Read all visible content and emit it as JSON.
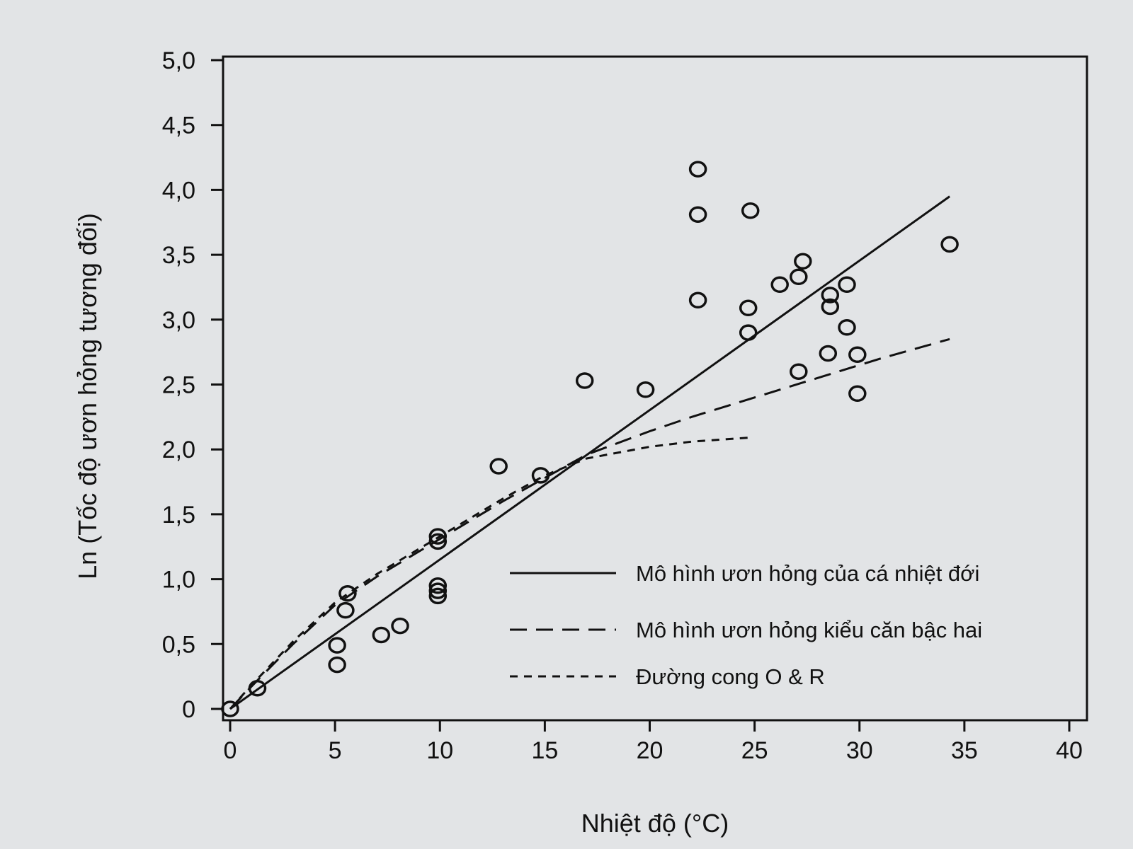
{
  "chart_data": {
    "type": "scatter",
    "xlabel": "Nhiệt độ (°C)",
    "ylabel": "Ln (Tốc độ ươn hỏng tương đối)",
    "xlim": [
      0,
      40
    ],
    "ylim": [
      0,
      5
    ],
    "x_ticks": [
      "0",
      "5",
      "10",
      "15",
      "20",
      "25",
      "30",
      "35",
      "40"
    ],
    "y_ticks": [
      "0",
      "0,5",
      "1,0",
      "1,5",
      "2,0",
      "2,5",
      "3,0",
      "3,5",
      "4,0",
      "4,5",
      "5,0"
    ],
    "grid": false,
    "legend_position": "bottom-right",
    "points": [
      {
        "x": 0,
        "y": 0
      },
      {
        "x": 1.3,
        "y": 0.16
      },
      {
        "x": 5.1,
        "y": 0.34
      },
      {
        "x": 5.1,
        "y": 0.49
      },
      {
        "x": 5.5,
        "y": 0.76
      },
      {
        "x": 5.6,
        "y": 0.89
      },
      {
        "x": 7.2,
        "y": 0.57
      },
      {
        "x": 8.1,
        "y": 0.64
      },
      {
        "x": 9.9,
        "y": 0.87
      },
      {
        "x": 9.9,
        "y": 0.91
      },
      {
        "x": 9.9,
        "y": 0.95
      },
      {
        "x": 9.9,
        "y": 1.29
      },
      {
        "x": 9.9,
        "y": 1.33
      },
      {
        "x": 12.8,
        "y": 1.87
      },
      {
        "x": 14.8,
        "y": 1.8
      },
      {
        "x": 16.9,
        "y": 2.53
      },
      {
        "x": 19.8,
        "y": 2.46
      },
      {
        "x": 22.3,
        "y": 3.15
      },
      {
        "x": 22.3,
        "y": 3.81
      },
      {
        "x": 22.3,
        "y": 4.16
      },
      {
        "x": 24.7,
        "y": 2.9
      },
      {
        "x": 24.7,
        "y": 3.09
      },
      {
        "x": 24.8,
        "y": 3.84
      },
      {
        "x": 26.2,
        "y": 3.27
      },
      {
        "x": 27.1,
        "y": 2.6
      },
      {
        "x": 27.1,
        "y": 3.33
      },
      {
        "x": 27.3,
        "y": 3.45
      },
      {
        "x": 28.5,
        "y": 2.74
      },
      {
        "x": 28.6,
        "y": 3.1
      },
      {
        "x": 28.6,
        "y": 3.19
      },
      {
        "x": 29.4,
        "y": 2.94
      },
      {
        "x": 29.4,
        "y": 3.27
      },
      {
        "x": 29.9,
        "y": 2.43
      },
      {
        "x": 29.9,
        "y": 2.73
      },
      {
        "x": 34.3,
        "y": 3.58
      }
    ],
    "series": [
      {
        "name": "Mô hình ươn hỏng của cá nhiệt đới",
        "style": "solid",
        "x": [
          0,
          34.3
        ],
        "y": [
          0,
          3.95
        ]
      },
      {
        "name": "Mô hình ươn hỏng kiểu căn bậc hai",
        "style": "long-dash",
        "x": [
          0,
          1,
          3,
          5,
          7,
          10,
          13,
          15,
          17,
          20,
          22,
          25,
          28,
          31,
          34.3
        ],
        "y": [
          0,
          0.17,
          0.5,
          0.8,
          1.02,
          1.31,
          1.6,
          1.78,
          1.96,
          2.14,
          2.25,
          2.4,
          2.55,
          2.7,
          2.85
        ]
      },
      {
        "name": "Đường cong O & R",
        "style": "short-dash",
        "x": [
          0,
          1,
          3,
          5,
          7,
          10,
          13,
          15,
          17,
          20,
          22,
          24.7
        ],
        "y": [
          0,
          0.18,
          0.52,
          0.82,
          1.04,
          1.33,
          1.62,
          1.8,
          1.93,
          2.02,
          2.06,
          2.09
        ]
      }
    ]
  }
}
